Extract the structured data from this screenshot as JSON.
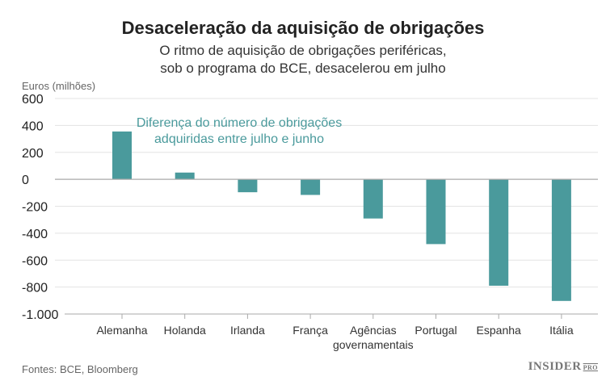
{
  "chart_data": {
    "type": "bar",
    "title": "Desaceleração da aquisição de obrigações",
    "subtitle": [
      "O ritmo de aquisição de obrigações periféricas,",
      "sob o programa do BCE, desacelerou em julho"
    ],
    "ylabel": "Euros (milhões)",
    "categories": [
      "Alemanha",
      "Holanda",
      "Irlanda",
      "França",
      "Agências governamentais",
      "Portugal",
      "Espanha",
      "Itália"
    ],
    "category_lines": [
      [
        "Alemanha"
      ],
      [
        "Holanda"
      ],
      [
        "Irlanda"
      ],
      [
        "França"
      ],
      [
        "Agências",
        "governamentais"
      ],
      [
        "Portugal"
      ],
      [
        "Espanha"
      ],
      [
        "Itália"
      ]
    ],
    "values": [
      355,
      50,
      -96,
      -116,
      -291,
      -481,
      -790,
      -903
    ],
    "ylim": [
      -1000,
      600
    ],
    "yticks": [
      600,
      400,
      200,
      0,
      -200,
      -400,
      -600,
      -800,
      -1000
    ],
    "ytick_labels": [
      "600",
      "400",
      "200",
      "0",
      "-200",
      "-400",
      "-600",
      "-800",
      "-1.000"
    ],
    "annotation": [
      "Diferença do número de obrigações",
      "adquiridas entre julho e junho"
    ],
    "grid": true,
    "color": "#4a9a9c",
    "source": "Fontes: BCE, Bloomberg"
  },
  "logo": {
    "main": "INSIDER",
    "sup": "PRO"
  }
}
